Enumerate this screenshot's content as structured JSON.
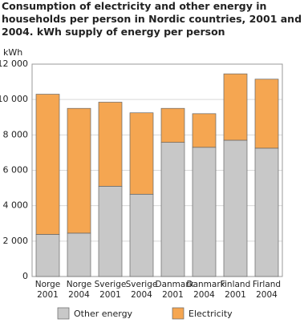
{
  "chart_data": {
    "type": "stacked_bar",
    "title": "Consumption of electricity and other energy in households per person in Nordic countries, 2001 and 2004. kWh supply of energy per person",
    "y_unit": "kWh",
    "categories": [
      "Norge 2001",
      "Norge 2004",
      "Sverige 2001",
      "Sverige 2004",
      "Danmark 2001",
      "Danmark 2004",
      "Finland 2001",
      "Firland 2004"
    ],
    "series": [
      {
        "name": "Other energy",
        "color": "#c8c8c8",
        "values": [
          2380,
          2450,
          5100,
          4650,
          7580,
          7300,
          7700,
          7250
        ]
      },
      {
        "name": "Electricity",
        "color": "#f5a651",
        "values": [
          7920,
          7050,
          4750,
          4600,
          1920,
          1900,
          3750,
          3900
        ]
      }
    ],
    "ylim": [
      0,
      12000
    ],
    "yticks": [
      0,
      {
        "value": 2000,
        "label": "2 000"
      },
      {
        "value": 4000,
        "label": "4 000"
      },
      {
        "value": 6000,
        "label": "6 000"
      },
      {
        "value": 8000,
        "label": "8 000"
      },
      {
        "value": 10000,
        "label": "10 000"
      },
      {
        "value": 12000,
        "label": "12 000"
      }
    ],
    "grid": true
  }
}
